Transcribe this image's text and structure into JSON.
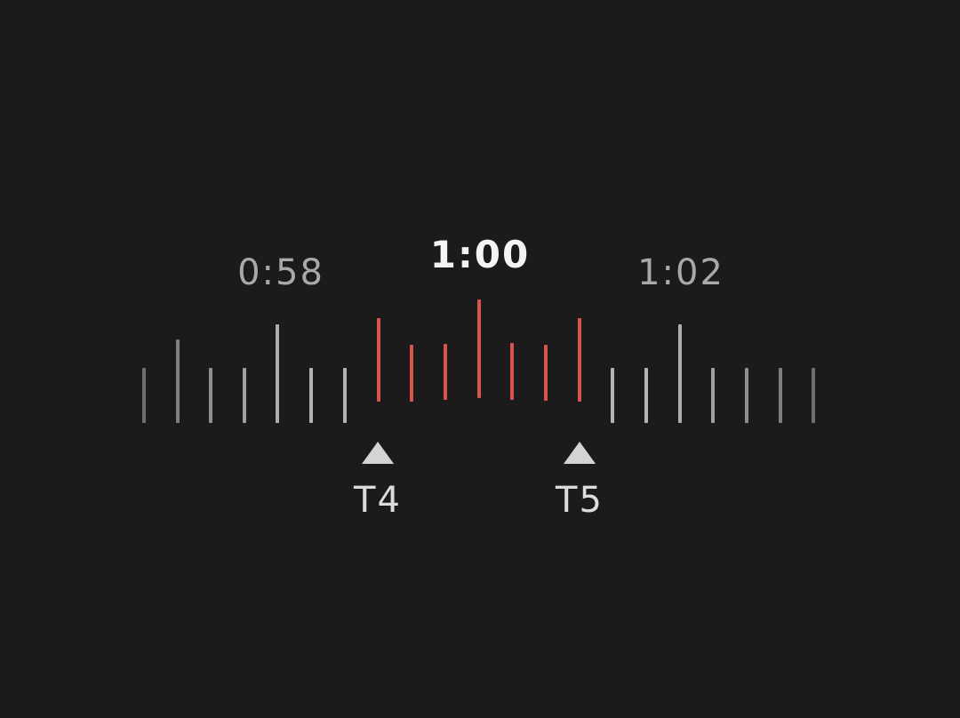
{
  "timeline": {
    "previous_time": "0:58",
    "current_time": "1:00",
    "next_time": "1:02",
    "colors": {
      "background": "#1b1b1b",
      "selected_range": "#d9544d",
      "tick": "#b4b4b4"
    },
    "markers": [
      {
        "label": "T4"
      },
      {
        "label": "T5"
      }
    ]
  }
}
